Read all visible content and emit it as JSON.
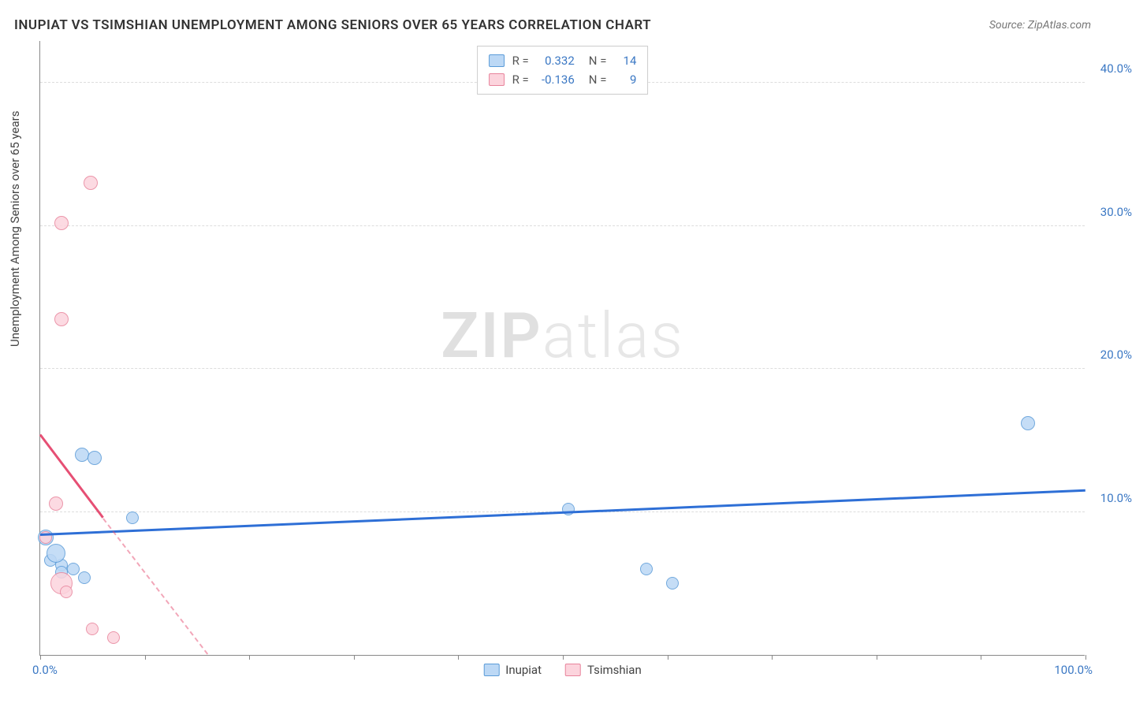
{
  "title": "INUPIAT VS TSIMSHIAN UNEMPLOYMENT AMONG SENIORS OVER 65 YEARS CORRELATION CHART",
  "source": "Source: ZipAtlas.com",
  "y_axis_label": "Unemployment Among Seniors over 65 years",
  "watermark_bold": "ZIP",
  "watermark_light": "atlas",
  "colors": {
    "blue_fill": "#bcd8f5",
    "blue_stroke": "#5a9bd8",
    "pink_fill": "#fcd4dd",
    "pink_stroke": "#e8849c",
    "blue_text": "#3b78c4",
    "pink_text": "#e8849c",
    "trend_blue": "#2e6fd6",
    "trend_pink": "#e64f74"
  },
  "x_axis": {
    "min": 0,
    "max": 100,
    "label_min": "0.0%",
    "label_max": "100.0%",
    "ticks": [
      0,
      10,
      20,
      30,
      40,
      50,
      60,
      70,
      80,
      90,
      100
    ]
  },
  "y_axis": {
    "min": 0,
    "max": 43,
    "gridlines": [
      10,
      20,
      30,
      40
    ],
    "tick_labels": {
      "10": "10.0%",
      "20": "20.0%",
      "30": "30.0%",
      "40": "40.0%"
    }
  },
  "stats": [
    {
      "swatch": "blue",
      "R_label": "R =",
      "R": "0.332",
      "N_label": "N =",
      "N": "14"
    },
    {
      "swatch": "pink",
      "R_label": "R =",
      "R": "-0.136",
      "N_label": "N =",
      "N": "9"
    }
  ],
  "legend": [
    {
      "swatch": "blue",
      "label": "Inupiat"
    },
    {
      "swatch": "pink",
      "label": "Tsimshian"
    }
  ],
  "series": [
    {
      "name": "Inupiat",
      "color": "blue",
      "points": [
        {
          "x": 0.5,
          "y": 8.2,
          "r": 10
        },
        {
          "x": 1.0,
          "y": 6.6,
          "r": 8
        },
        {
          "x": 2.0,
          "y": 6.3,
          "r": 8
        },
        {
          "x": 1.5,
          "y": 7.1,
          "r": 12
        },
        {
          "x": 2.0,
          "y": 5.8,
          "r": 8
        },
        {
          "x": 3.2,
          "y": 6.0,
          "r": 8
        },
        {
          "x": 4.2,
          "y": 5.4,
          "r": 8
        },
        {
          "x": 4.0,
          "y": 14.0,
          "r": 9
        },
        {
          "x": 5.2,
          "y": 13.8,
          "r": 9
        },
        {
          "x": 8.8,
          "y": 9.6,
          "r": 8
        },
        {
          "x": 50.5,
          "y": 10.2,
          "r": 8
        },
        {
          "x": 58.0,
          "y": 6.0,
          "r": 8
        },
        {
          "x": 60.5,
          "y": 5.0,
          "r": 8
        },
        {
          "x": 94.5,
          "y": 16.2,
          "r": 9
        }
      ],
      "trend": {
        "x1": 0,
        "y1": 8.3,
        "x2": 100,
        "y2": 11.4
      }
    },
    {
      "name": "Tsimshian",
      "color": "pink",
      "points": [
        {
          "x": 1.5,
          "y": 10.6,
          "r": 9
        },
        {
          "x": 0.5,
          "y": 8.2,
          "r": 8
        },
        {
          "x": 2.0,
          "y": 5.0,
          "r": 14
        },
        {
          "x": 2.5,
          "y": 4.4,
          "r": 8
        },
        {
          "x": 5.0,
          "y": 1.8,
          "r": 8
        },
        {
          "x": 7.0,
          "y": 1.2,
          "r": 8
        },
        {
          "x": 2.0,
          "y": 23.5,
          "r": 9
        },
        {
          "x": 2.0,
          "y": 30.2,
          "r": 9
        },
        {
          "x": 4.8,
          "y": 33.0,
          "r": 9
        }
      ],
      "trend": {
        "x1": 0,
        "y1": 15.3,
        "x2": 16,
        "y2": 0
      }
    }
  ]
}
